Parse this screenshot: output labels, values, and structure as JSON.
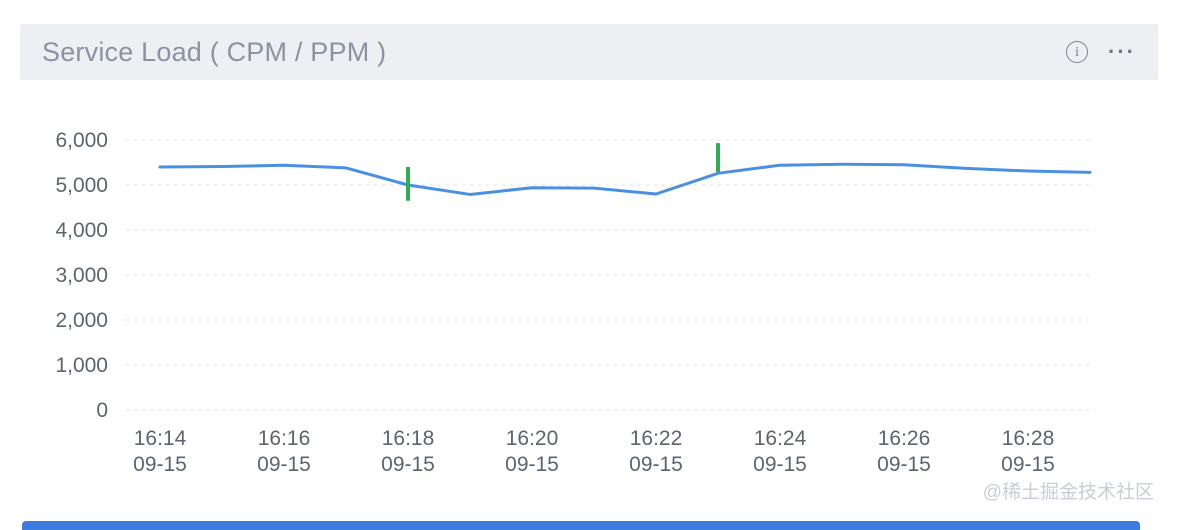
{
  "header": {
    "title": "Service Load ( CPM / PPM )"
  },
  "icons": {
    "info": "i",
    "more": "···"
  },
  "watermark": "@稀土掘金技术社区",
  "colors": {
    "line": "#4a90e2",
    "marker": "#2fae4f",
    "grid": "#e2e5ea",
    "axis_text": "#5c6470",
    "title_text": "#8b93a2",
    "header_bg": "#edeff2",
    "bottom_bar": "#3b7ce0",
    "watermark": "#c9ced6"
  },
  "chart_data": {
    "type": "line",
    "title": "Service Load ( CPM / PPM )",
    "x": [
      "16:14",
      "16:15",
      "16:16",
      "16:17",
      "16:18",
      "16:19",
      "16:20",
      "16:21",
      "16:22",
      "16:23",
      "16:24",
      "16:25",
      "16:26",
      "16:27",
      "16:28",
      "16:29"
    ],
    "labeled_x": [
      "16:14",
      "16:16",
      "16:18",
      "16:20",
      "16:22",
      "16:24",
      "16:26",
      "16:28"
    ],
    "x_label_date": "09-15",
    "series": [
      {
        "name": "Service Load",
        "values": [
          5400,
          5410,
          5440,
          5380,
          5000,
          4790,
          4940,
          4930,
          4800,
          5260,
          5440,
          5460,
          5450,
          5370,
          5310,
          5280
        ]
      }
    ],
    "ylim": [
      0,
      6000
    ],
    "y_ticks": [
      0,
      1000,
      2000,
      3000,
      4000,
      5000,
      6000
    ],
    "y_tick_labels": [
      "0",
      "1,000",
      "2,000",
      "3,000",
      "4,000",
      "5,000",
      "6,000"
    ],
    "grid": "dashed-horizontal",
    "legend": "none",
    "markers": [
      {
        "x": "16:18",
        "from": 4650,
        "to": 5400
      },
      {
        "x": "16:23",
        "from": 5290,
        "to": 5930
      }
    ]
  }
}
